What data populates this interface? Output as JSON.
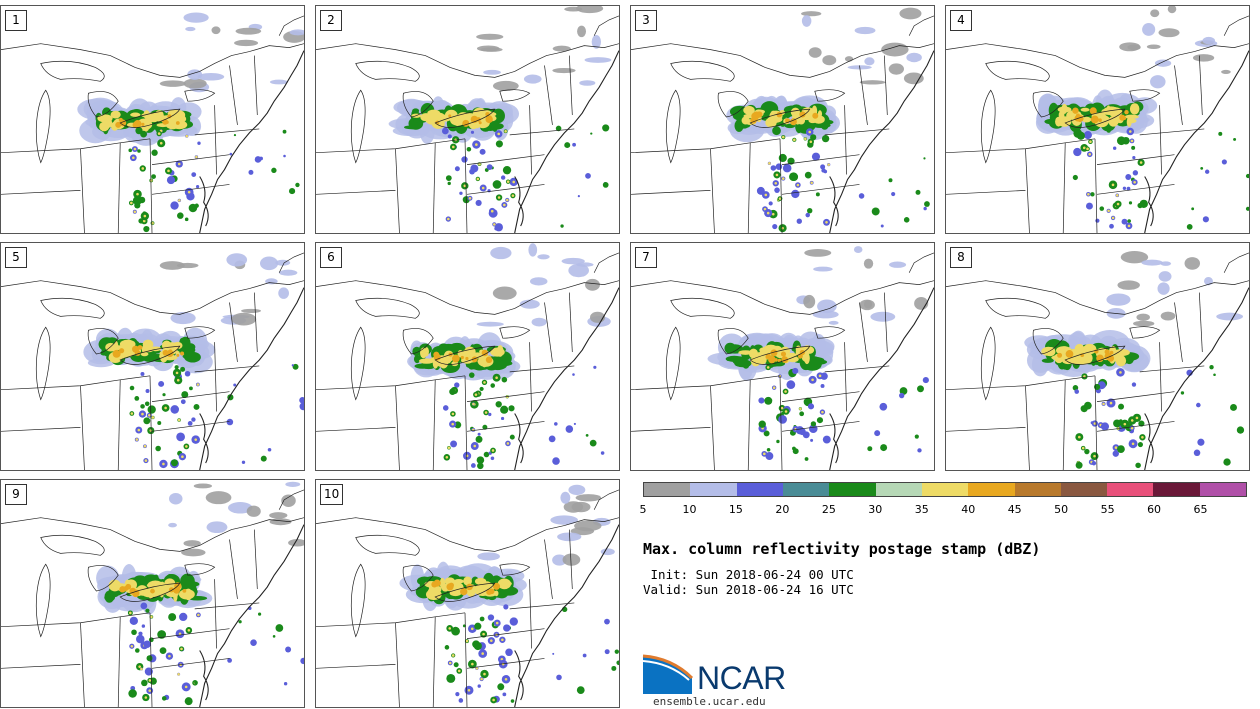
{
  "panels": [
    {
      "label": "1"
    },
    {
      "label": "2"
    },
    {
      "label": "3"
    },
    {
      "label": "4"
    },
    {
      "label": "5"
    },
    {
      "label": "6"
    },
    {
      "label": "7"
    },
    {
      "label": "8"
    },
    {
      "label": "9"
    },
    {
      "label": "10"
    }
  ],
  "colorbar": {
    "ticks": [
      "5",
      "10",
      "15",
      "20",
      "25",
      "30",
      "35",
      "40",
      "45",
      "50",
      "55",
      "60",
      "65"
    ],
    "colors": [
      "#a0a0a0",
      "#b4bde8",
      "#5a5ed9",
      "#4a8c96",
      "#1a8a1a",
      "#b6d8b6",
      "#eedb66",
      "#e8a820",
      "#b8792c",
      "#8a5840",
      "#e8507a",
      "#6a1838",
      "#b050a8"
    ]
  },
  "title": "Max. column reflectivity postage stamp (dBZ)",
  "init": " Init: Sun 2018-06-24 00 UTC",
  "valid": "Valid: Sun 2018-06-24 16 UTC",
  "logo": {
    "text": "NCAR"
  },
  "site": "ensemble.ucar.edu"
}
